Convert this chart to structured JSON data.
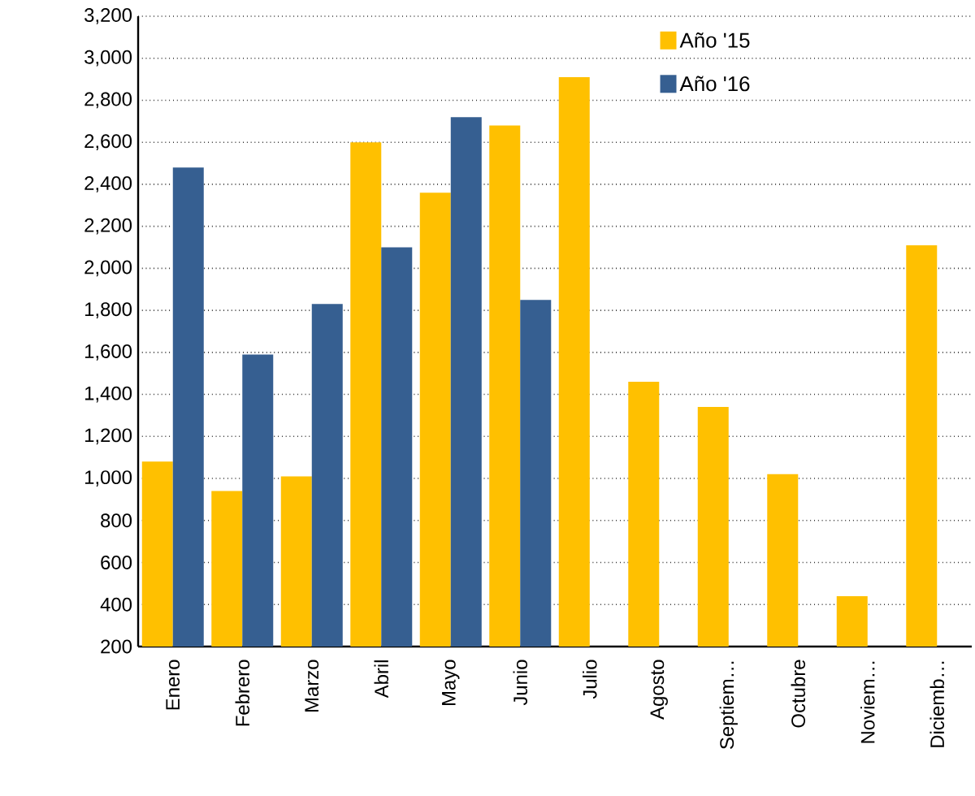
{
  "chart_data": {
    "type": "bar",
    "categories": [
      "Enero",
      "Febrero",
      "Marzo",
      "Abril",
      "Mayo",
      "Junio",
      "Julio",
      "Agosto",
      "Septiem…",
      "Octubre",
      "Noviem…",
      "Diciemb…"
    ],
    "series": [
      {
        "name": "Año '15",
        "color": "#ffc000",
        "values": [
          1080,
          940,
          1010,
          2600,
          2360,
          2680,
          2910,
          1460,
          1340,
          1020,
          440,
          2110
        ]
      },
      {
        "name": "Año '16",
        "color": "#365f91",
        "values": [
          2480,
          1590,
          1830,
          2100,
          2720,
          1850,
          null,
          null,
          null,
          null,
          null,
          null
        ]
      }
    ],
    "ylim": [
      200,
      3200
    ],
    "yticks": [
      200,
      400,
      600,
      800,
      {
        "value": 1000,
        "label": "1,000"
      },
      {
        "value": 1200,
        "label": "1,200"
      },
      {
        "value": 1400,
        "label": "1,400"
      },
      {
        "value": 1600,
        "label": "1,600"
      },
      {
        "value": 1800,
        "label": "1,800"
      },
      {
        "value": 2000,
        "label": "2,000"
      },
      {
        "value": 2200,
        "label": "2,200"
      },
      {
        "value": 2400,
        "label": "2,400"
      },
      {
        "value": 2600,
        "label": "2,600"
      },
      {
        "value": 2800,
        "label": "2,800"
      },
      {
        "value": 3000,
        "label": "3,000"
      },
      {
        "value": 3200,
        "label": "3,200"
      }
    ],
    "grid": "y",
    "legend": "top right"
  }
}
